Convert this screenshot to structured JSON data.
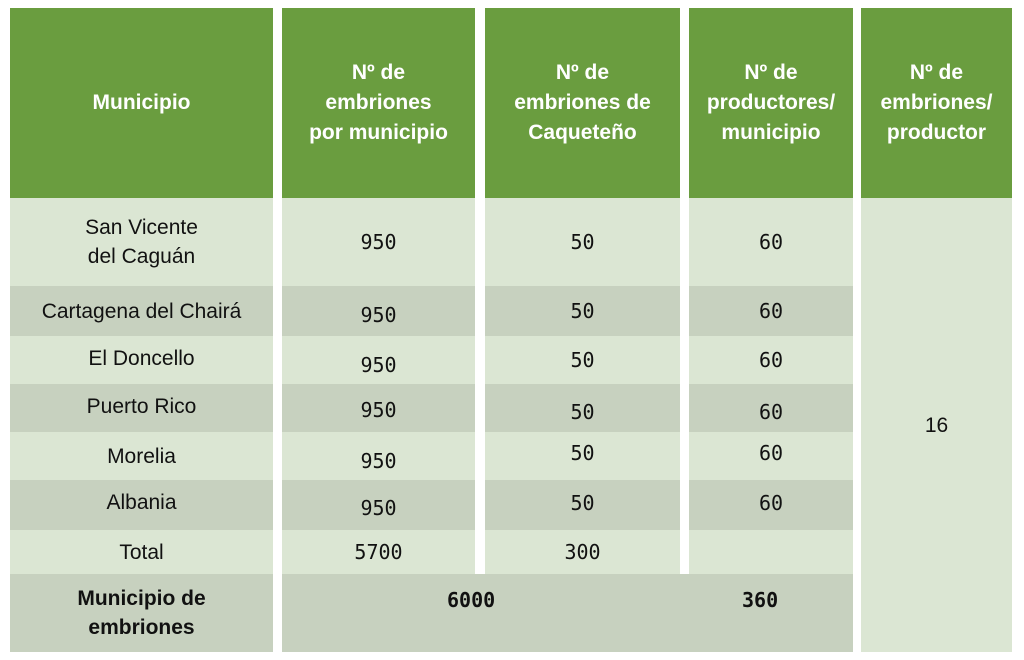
{
  "table": {
    "headers": [
      "Municipio",
      "Nº de\nembriones\npor municipio",
      "Nº de\nembriones de\nCaqueteño",
      "Nº de\nproductores/\nmunicipio",
      "Nº de\nembriones/\nproductor"
    ],
    "rows": [
      {
        "municipio": "San Vicente\ndel Caguán",
        "embriones": "950",
        "caqueteno": "50",
        "productores": "60"
      },
      {
        "municipio": "Cartagena del Chairá",
        "embriones": "950",
        "caqueteno": "50",
        "productores": "60"
      },
      {
        "municipio": "El Doncello",
        "embriones": "950",
        "caqueteno": "50",
        "productores": "60"
      },
      {
        "municipio": "Puerto Rico",
        "embriones": "950",
        "caqueteno": "50",
        "productores": "60"
      },
      {
        "municipio": "Morelia",
        "embriones": "950",
        "caqueteno": "50",
        "productores": "60"
      },
      {
        "municipio": "Albania",
        "embriones": "950",
        "caqueteno": "50",
        "productores": "60"
      }
    ],
    "total": {
      "label": "Total",
      "embriones": "5700",
      "caqueteno": "300",
      "productores": ""
    },
    "summary": {
      "label": "Municipio de\nembriones",
      "embriones_total": "6000",
      "productores_total": "360"
    },
    "embriones_por_productor": "16"
  },
  "colors": {
    "header": "#6a9d3f",
    "row_light": "#dbe6d3",
    "row_dark": "#c7d1bf"
  }
}
